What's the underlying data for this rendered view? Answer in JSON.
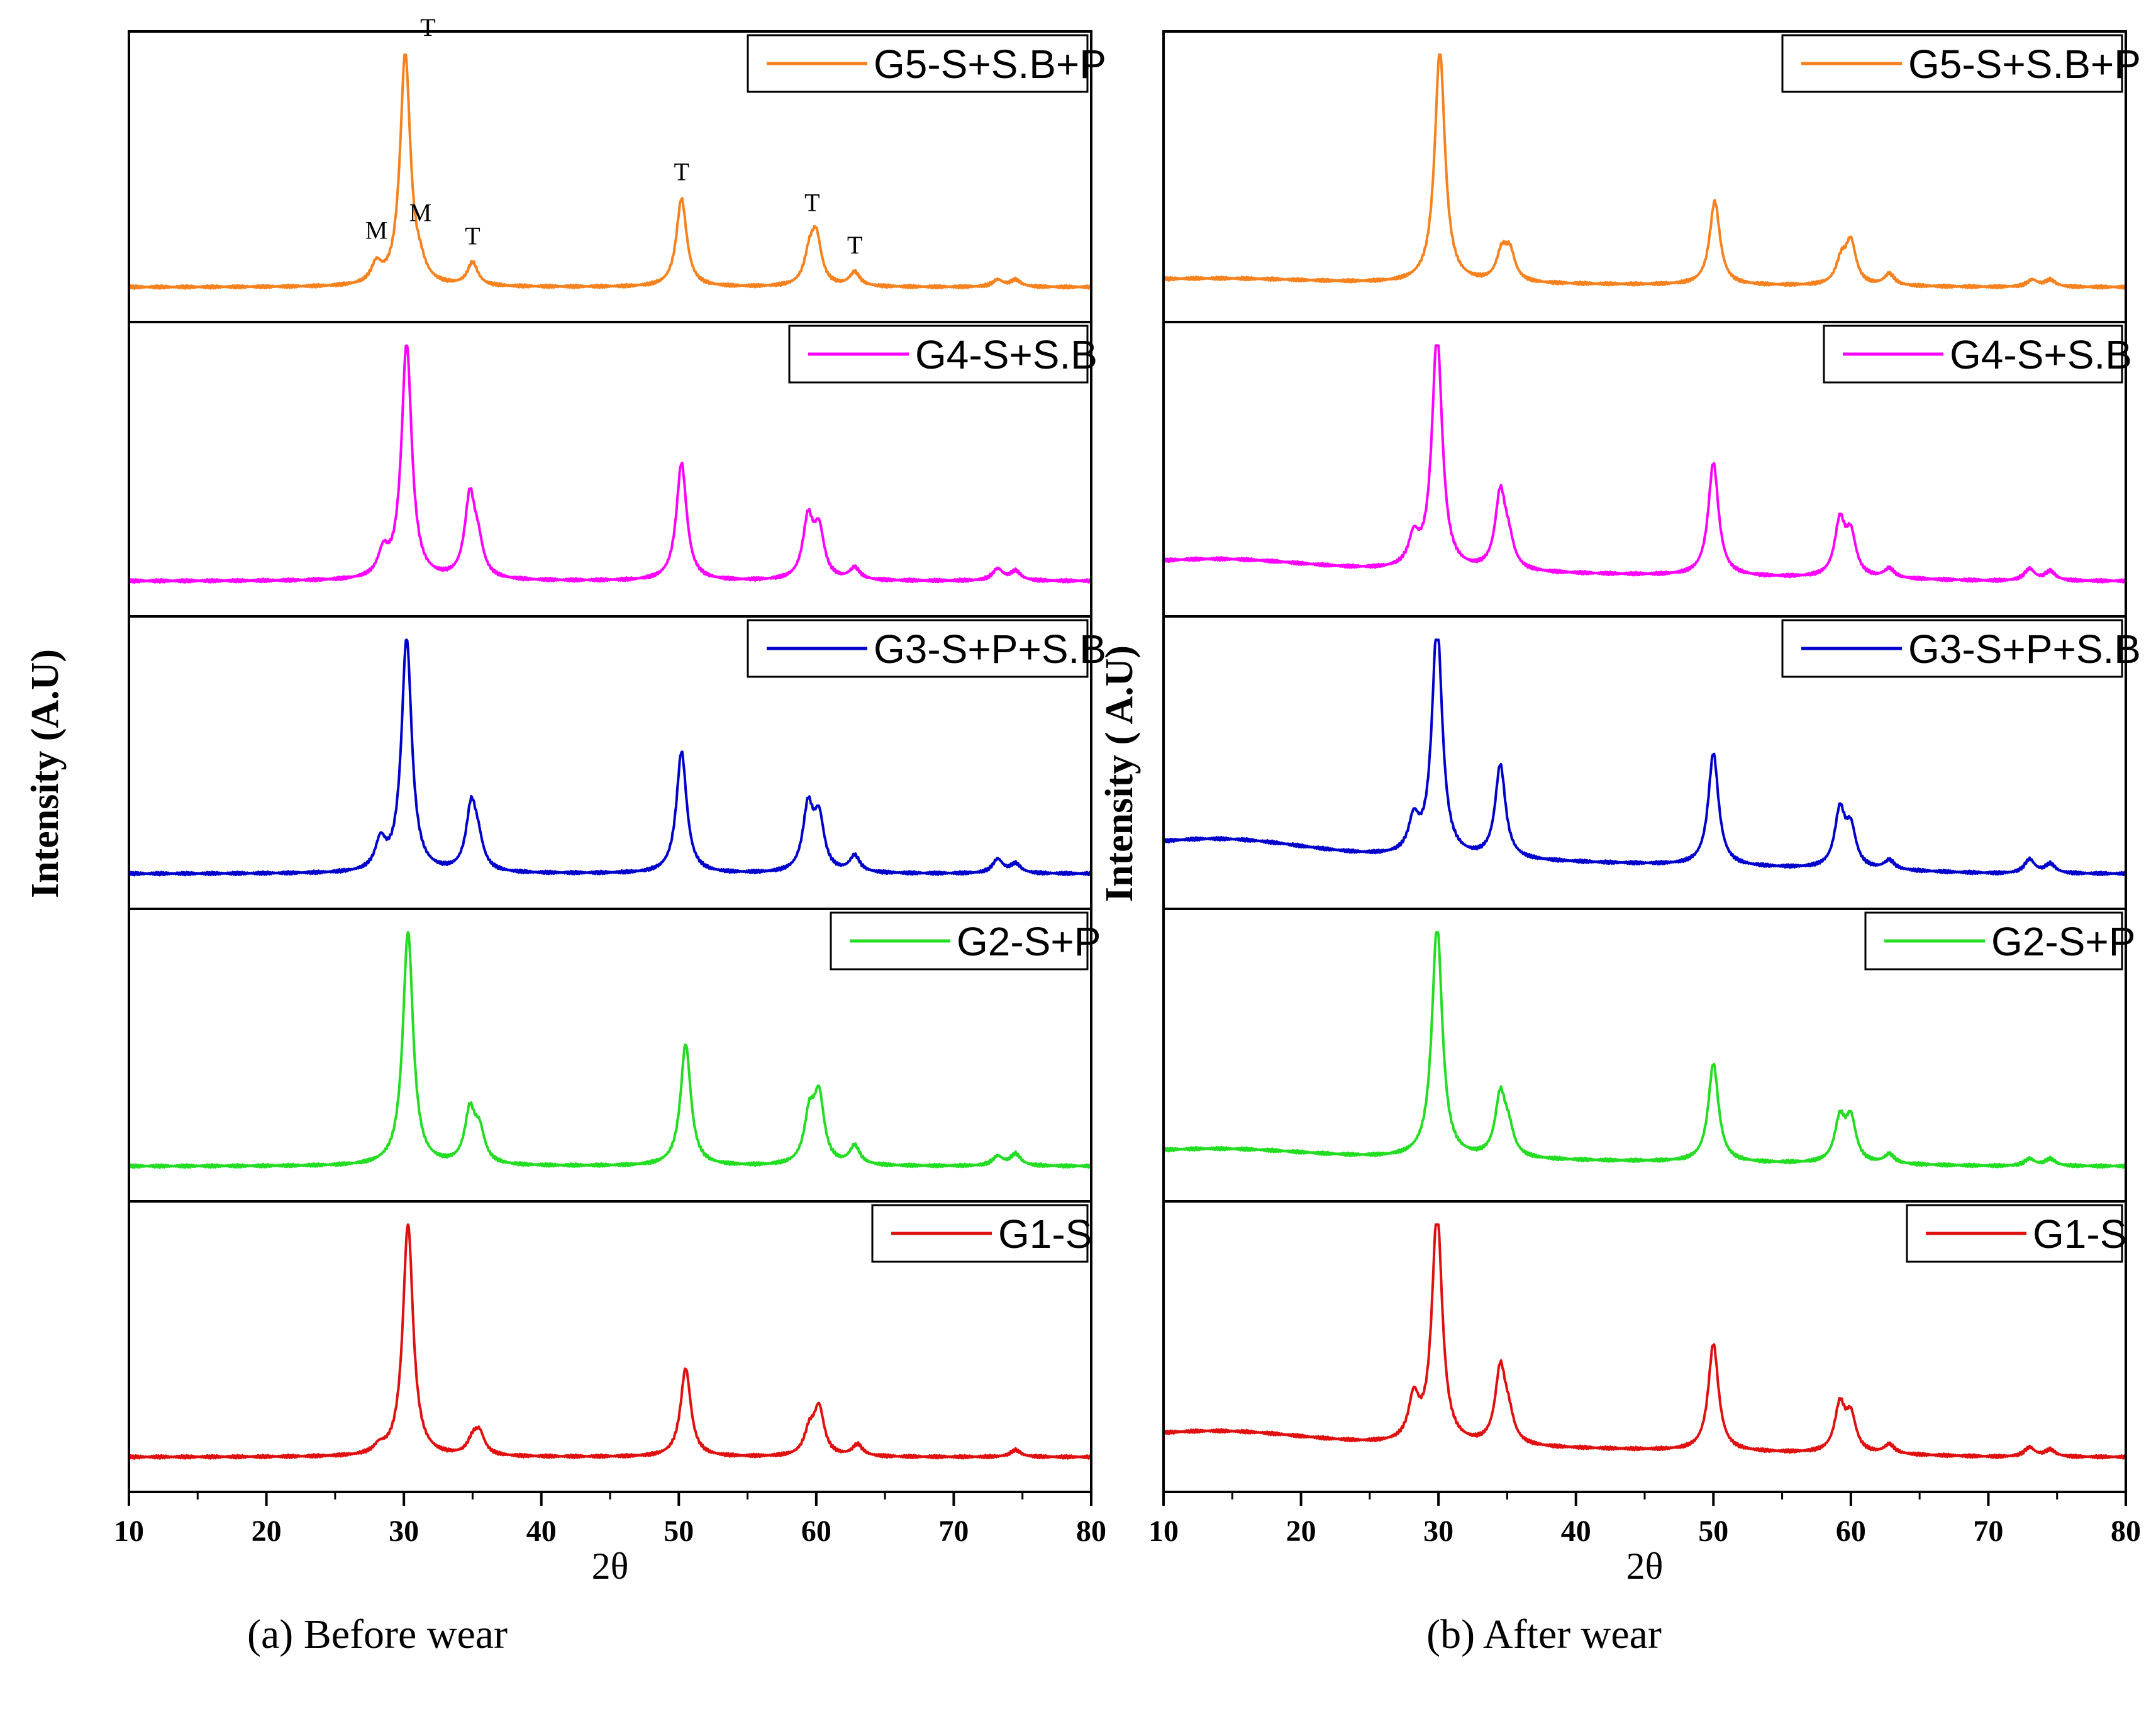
{
  "chart_data": [
    {
      "type": "line",
      "title": "",
      "caption": "(a) Before wear",
      "xlabel": "2θ",
      "ylabel": "Intensity (A.U)",
      "xlim": [
        10,
        80
      ],
      "xticks": [
        10,
        20,
        30,
        40,
        50,
        60,
        70,
        80
      ],
      "grid": false,
      "series": [
        {
          "name": "G5-S+S.B+P",
          "color": "#f5821f",
          "baseline": 0.0,
          "peaks": [
            [
              28.0,
              0.08
            ],
            [
              30.1,
              1.0
            ],
            [
              31.2,
              0.05
            ],
            [
              35.0,
              0.1
            ],
            [
              50.2,
              0.38
            ],
            [
              59.5,
              0.12
            ],
            [
              60.0,
              0.2
            ],
            [
              62.8,
              0.06
            ],
            [
              73.2,
              0.03
            ],
            [
              74.5,
              0.03
            ]
          ]
        },
        {
          "name": "G4-S+S.B",
          "color": "#ff00ff",
          "baseline": 0.0,
          "peaks": [
            [
              28.5,
              0.1
            ],
            [
              30.2,
              1.0
            ],
            [
              34.8,
              0.34
            ],
            [
              35.4,
              0.12
            ],
            [
              50.2,
              0.5
            ],
            [
              59.4,
              0.25
            ],
            [
              60.2,
              0.2
            ],
            [
              62.8,
              0.05
            ],
            [
              73.2,
              0.05
            ],
            [
              74.5,
              0.04
            ]
          ]
        },
        {
          "name": "G3-S+P+S.B",
          "color": "#0000cd",
          "baseline": 0.0,
          "peaks": [
            [
              28.3,
              0.12
            ],
            [
              30.2,
              1.0
            ],
            [
              34.9,
              0.27
            ],
            [
              35.4,
              0.1
            ],
            [
              50.2,
              0.52
            ],
            [
              59.4,
              0.27
            ],
            [
              60.2,
              0.22
            ],
            [
              62.8,
              0.07
            ],
            [
              73.2,
              0.06
            ],
            [
              74.5,
              0.04
            ]
          ]
        },
        {
          "name": "G2-S+P",
          "color": "#22dd22",
          "baseline": 0.0,
          "peaks": [
            [
              30.3,
              1.0
            ],
            [
              34.8,
              0.22
            ],
            [
              35.5,
              0.13
            ],
            [
              50.5,
              0.52
            ],
            [
              59.5,
              0.2
            ],
            [
              60.2,
              0.28
            ],
            [
              62.8,
              0.08
            ],
            [
              73.2,
              0.04
            ],
            [
              74.5,
              0.05
            ]
          ]
        },
        {
          "name": "G1-S",
          "color": "#e01010",
          "baseline": 0.0,
          "peaks": [
            [
              28.2,
              0.03
            ],
            [
              30.3,
              1.0
            ],
            [
              35.0,
              0.06
            ],
            [
              35.5,
              0.09
            ],
            [
              50.5,
              0.38
            ],
            [
              59.5,
              0.1
            ],
            [
              60.2,
              0.2
            ],
            [
              63.0,
              0.05
            ],
            [
              74.5,
              0.03
            ]
          ]
        }
      ],
      "annotations": [
        {
          "text": "T",
          "x": 30.1,
          "series": "G5-S+S.B+P"
        },
        {
          "text": "M",
          "x": 28.0,
          "series": "G5-S+S.B+P"
        },
        {
          "text": "M",
          "x": 31.2,
          "series": "G5-S+S.B+P"
        },
        {
          "text": "T",
          "x": 35.0,
          "series": "G5-S+S.B+P"
        },
        {
          "text": "T",
          "x": 50.2,
          "series": "G5-S+S.B+P"
        },
        {
          "text": "T",
          "x": 59.7,
          "series": "G5-S+S.B+P"
        },
        {
          "text": "T",
          "x": 62.8,
          "series": "G5-S+S.B+P"
        }
      ]
    },
    {
      "type": "line",
      "title": "",
      "caption": "(b) After wear",
      "xlabel": "2θ",
      "ylabel": "Intensity ( A.U)",
      "xlim": [
        10,
        80
      ],
      "xticks": [
        10,
        20,
        30,
        40,
        50,
        60,
        70,
        80
      ],
      "grid": false,
      "series": [
        {
          "name": "G5-S+S.B+P",
          "color": "#f5821f",
          "baseline": 0.04,
          "peaks": [
            [
              30.1,
              1.0
            ],
            [
              34.6,
              0.12
            ],
            [
              35.2,
              0.12
            ],
            [
              50.1,
              0.36
            ],
            [
              59.3,
              0.1
            ],
            [
              60.0,
              0.18
            ],
            [
              62.8,
              0.05
            ],
            [
              73.2,
              0.03
            ],
            [
              74.5,
              0.03
            ]
          ]
        },
        {
          "name": "G4-S+S.B",
          "color": "#ff00ff",
          "baseline": 0.1,
          "peaks": [
            [
              28.2,
              0.12
            ],
            [
              29.9,
              1.0
            ],
            [
              34.5,
              0.32
            ],
            [
              35.1,
              0.1
            ],
            [
              50.0,
              0.48
            ],
            [
              59.2,
              0.23
            ],
            [
              60.0,
              0.17
            ],
            [
              62.8,
              0.04
            ],
            [
              73.0,
              0.05
            ],
            [
              74.5,
              0.04
            ]
          ]
        },
        {
          "name": "G3-S+P+S.B",
          "color": "#0000cd",
          "baseline": 0.16,
          "peaks": [
            [
              28.2,
              0.14
            ],
            [
              29.9,
              1.0
            ],
            [
              34.5,
              0.4
            ],
            [
              50.0,
              0.48
            ],
            [
              59.2,
              0.24
            ],
            [
              60.0,
              0.16
            ],
            [
              62.8,
              0.04
            ],
            [
              73.0,
              0.06
            ],
            [
              74.5,
              0.04
            ]
          ]
        },
        {
          "name": "G2-S+P",
          "color": "#22dd22",
          "baseline": 0.08,
          "peaks": [
            [
              29.9,
              1.0
            ],
            [
              34.5,
              0.26
            ],
            [
              35.1,
              0.1
            ],
            [
              50.0,
              0.42
            ],
            [
              59.2,
              0.18
            ],
            [
              60.0,
              0.18
            ],
            [
              62.8,
              0.04
            ],
            [
              73.0,
              0.03
            ],
            [
              74.5,
              0.03
            ]
          ]
        },
        {
          "name": "G1-S",
          "color": "#e01010",
          "baseline": 0.12,
          "peaks": [
            [
              28.2,
              0.18
            ],
            [
              29.9,
              1.0
            ],
            [
              34.5,
              0.32
            ],
            [
              35.1,
              0.1
            ],
            [
              50.0,
              0.46
            ],
            [
              59.2,
              0.2
            ],
            [
              60.0,
              0.15
            ],
            [
              62.8,
              0.04
            ],
            [
              73.0,
              0.04
            ],
            [
              74.5,
              0.03
            ]
          ]
        }
      ],
      "annotations": []
    }
  ]
}
